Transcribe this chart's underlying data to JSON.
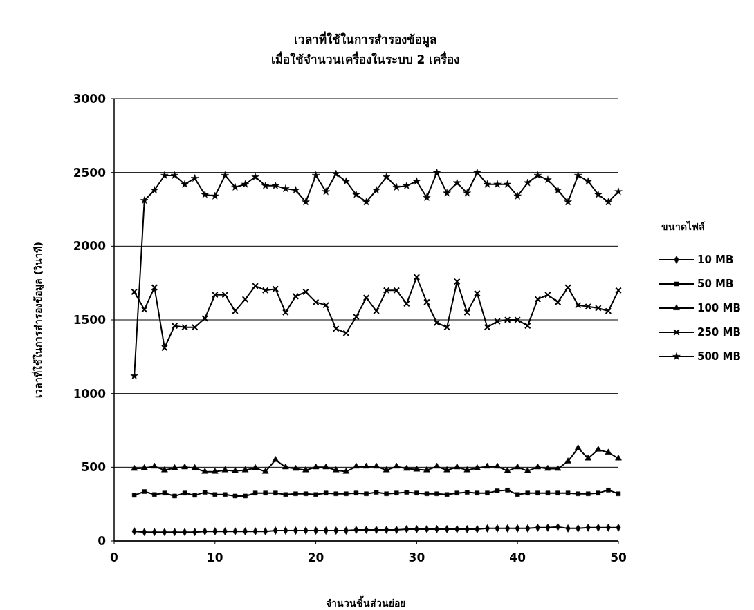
{
  "chart_data": {
    "type": "line",
    "title": "เวลาที่ใช้ในการสำรองข้อมูล",
    "subtitle": "เมื่อใช้จำนวนเครื่องในระบบ 2 เครื่อง",
    "xlabel": "จำนวนชิ้นส่วนย่อย",
    "ylabel": "เวลาที่ใช้ในการสำรองข้อมูล (วินาที)",
    "legend_title": "ขนาดไฟล์",
    "legend": "right",
    "grid": "y",
    "xlim": [
      0,
      50
    ],
    "xticks": [
      0,
      10,
      20,
      30,
      40,
      50
    ],
    "ylim": [
      0,
      3000
    ],
    "yticks": [
      0,
      500,
      1000,
      1500,
      2000,
      2500,
      3000
    ],
    "x": [
      2,
      3,
      4,
      5,
      6,
      7,
      8,
      9,
      10,
      11,
      12,
      13,
      14,
      15,
      16,
      17,
      18,
      19,
      20,
      21,
      22,
      23,
      24,
      25,
      26,
      27,
      28,
      29,
      30,
      31,
      32,
      33,
      34,
      35,
      36,
      37,
      38,
      39,
      40,
      41,
      42,
      43,
      44,
      45,
      46,
      47,
      48,
      49,
      50
    ],
    "series": [
      {
        "name": "10 MB",
        "color": "#000000",
        "marker": "diamond",
        "values": [
          65,
          60,
          60,
          60,
          60,
          60,
          60,
          65,
          65,
          65,
          65,
          65,
          65,
          65,
          70,
          70,
          70,
          70,
          70,
          70,
          70,
          70,
          75,
          75,
          75,
          75,
          75,
          80,
          80,
          80,
          80,
          80,
          80,
          80,
          80,
          85,
          85,
          85,
          85,
          85,
          90,
          90,
          95,
          85,
          85,
          90,
          90,
          90,
          90
        ]
      },
      {
        "name": "50 MB",
        "color": "#000000",
        "marker": "square",
        "values": [
          310,
          335,
          315,
          325,
          305,
          325,
          310,
          330,
          315,
          315,
          305,
          305,
          325,
          325,
          325,
          315,
          320,
          320,
          315,
          325,
          320,
          320,
          325,
          320,
          330,
          320,
          325,
          330,
          325,
          320,
          320,
          315,
          325,
          330,
          325,
          325,
          340,
          345,
          315,
          325,
          325,
          325,
          325,
          325,
          320,
          320,
          325,
          345,
          320
        ]
      },
      {
        "name": "100 MB",
        "color": "#000000",
        "marker": "triangle",
        "values": [
          490,
          495,
          505,
          480,
          495,
          500,
          495,
          470,
          470,
          480,
          475,
          480,
          495,
          470,
          550,
          500,
          490,
          480,
          500,
          500,
          480,
          470,
          505,
          505,
          505,
          480,
          505,
          490,
          485,
          480,
          505,
          480,
          500,
          480,
          495,
          505,
          505,
          475,
          500,
          475,
          500,
          490,
          490,
          540,
          630,
          560,
          620,
          600,
          560
        ]
      },
      {
        "name": "250 MB",
        "color": "#000000",
        "marker": "cross",
        "values": [
          1690,
          1570,
          1720,
          1310,
          1460,
          1450,
          1450,
          1510,
          1670,
          1670,
          1560,
          1640,
          1730,
          1700,
          1710,
          1550,
          1660,
          1690,
          1620,
          1600,
          1440,
          1410,
          1520,
          1650,
          1560,
          1700,
          1700,
          1610,
          1790,
          1620,
          1480,
          1450,
          1760,
          1550,
          1680,
          1450,
          1490,
          1500,
          1500,
          1460,
          1640,
          1670,
          1620,
          1720,
          1600,
          1590,
          1580,
          1560,
          1700
        ]
      },
      {
        "name": "500 MB",
        "color": "#000000",
        "marker": "star",
        "values": [
          1120,
          2310,
          2380,
          2480,
          2480,
          2420,
          2460,
          2350,
          2340,
          2480,
          2400,
          2420,
          2470,
          2410,
          2410,
          2390,
          2380,
          2300,
          2480,
          2370,
          2490,
          2440,
          2350,
          2300,
          2380,
          2470,
          2400,
          2410,
          2440,
          2330,
          2500,
          2360,
          2430,
          2360,
          2500,
          2420,
          2420,
          2420,
          2340,
          2430,
          2480,
          2450,
          2380,
          2300,
          2480,
          2440,
          2350,
          2300,
          2370
        ]
      }
    ]
  }
}
